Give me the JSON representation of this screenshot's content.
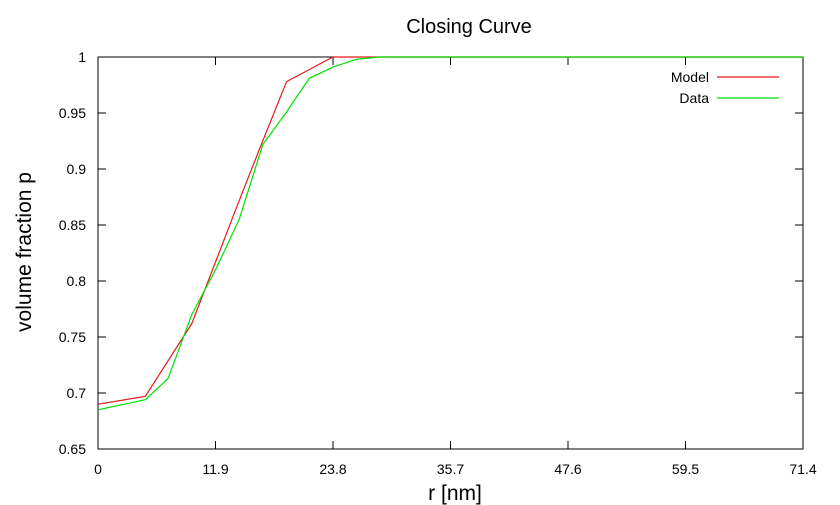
{
  "chart_data": {
    "type": "line",
    "title": "Closing Curve",
    "xlabel": "r [nm]",
    "ylabel": "volume fraction p",
    "xlim": [
      0,
      71.4
    ],
    "ylim": [
      0.65,
      1.0
    ],
    "x_ticks": [
      "0",
      "11.9",
      "23.8",
      "35.7",
      "47.6",
      "59.5",
      "71.4"
    ],
    "y_ticks": [
      "0.65",
      "0.7",
      "0.75",
      "0.8",
      "0.85",
      "0.9",
      "0.95",
      "1"
    ],
    "grid": false,
    "legend_position": "top-right",
    "series": [
      {
        "name": "Model",
        "color": "#e41a1c",
        "x": [
          0,
          4.8,
          9.5,
          14.0,
          16.5,
          19.1,
          23.8,
          28.5,
          71.4
        ],
        "y": [
          0.69,
          0.697,
          0.762,
          0.865,
          0.921,
          0.978,
          1.0,
          1.0,
          1.0
        ]
      },
      {
        "name": "Data",
        "color": "#00e000",
        "x": [
          0,
          4.8,
          7.1,
          9.5,
          11.9,
          14.3,
          16.7,
          19.1,
          21.4,
          23.8,
          26.2,
          28.5,
          71.4
        ],
        "y": [
          0.685,
          0.694,
          0.713,
          0.77,
          0.81,
          0.855,
          0.922,
          0.951,
          0.981,
          0.991,
          0.998,
          1.0,
          1.0
        ]
      }
    ]
  }
}
